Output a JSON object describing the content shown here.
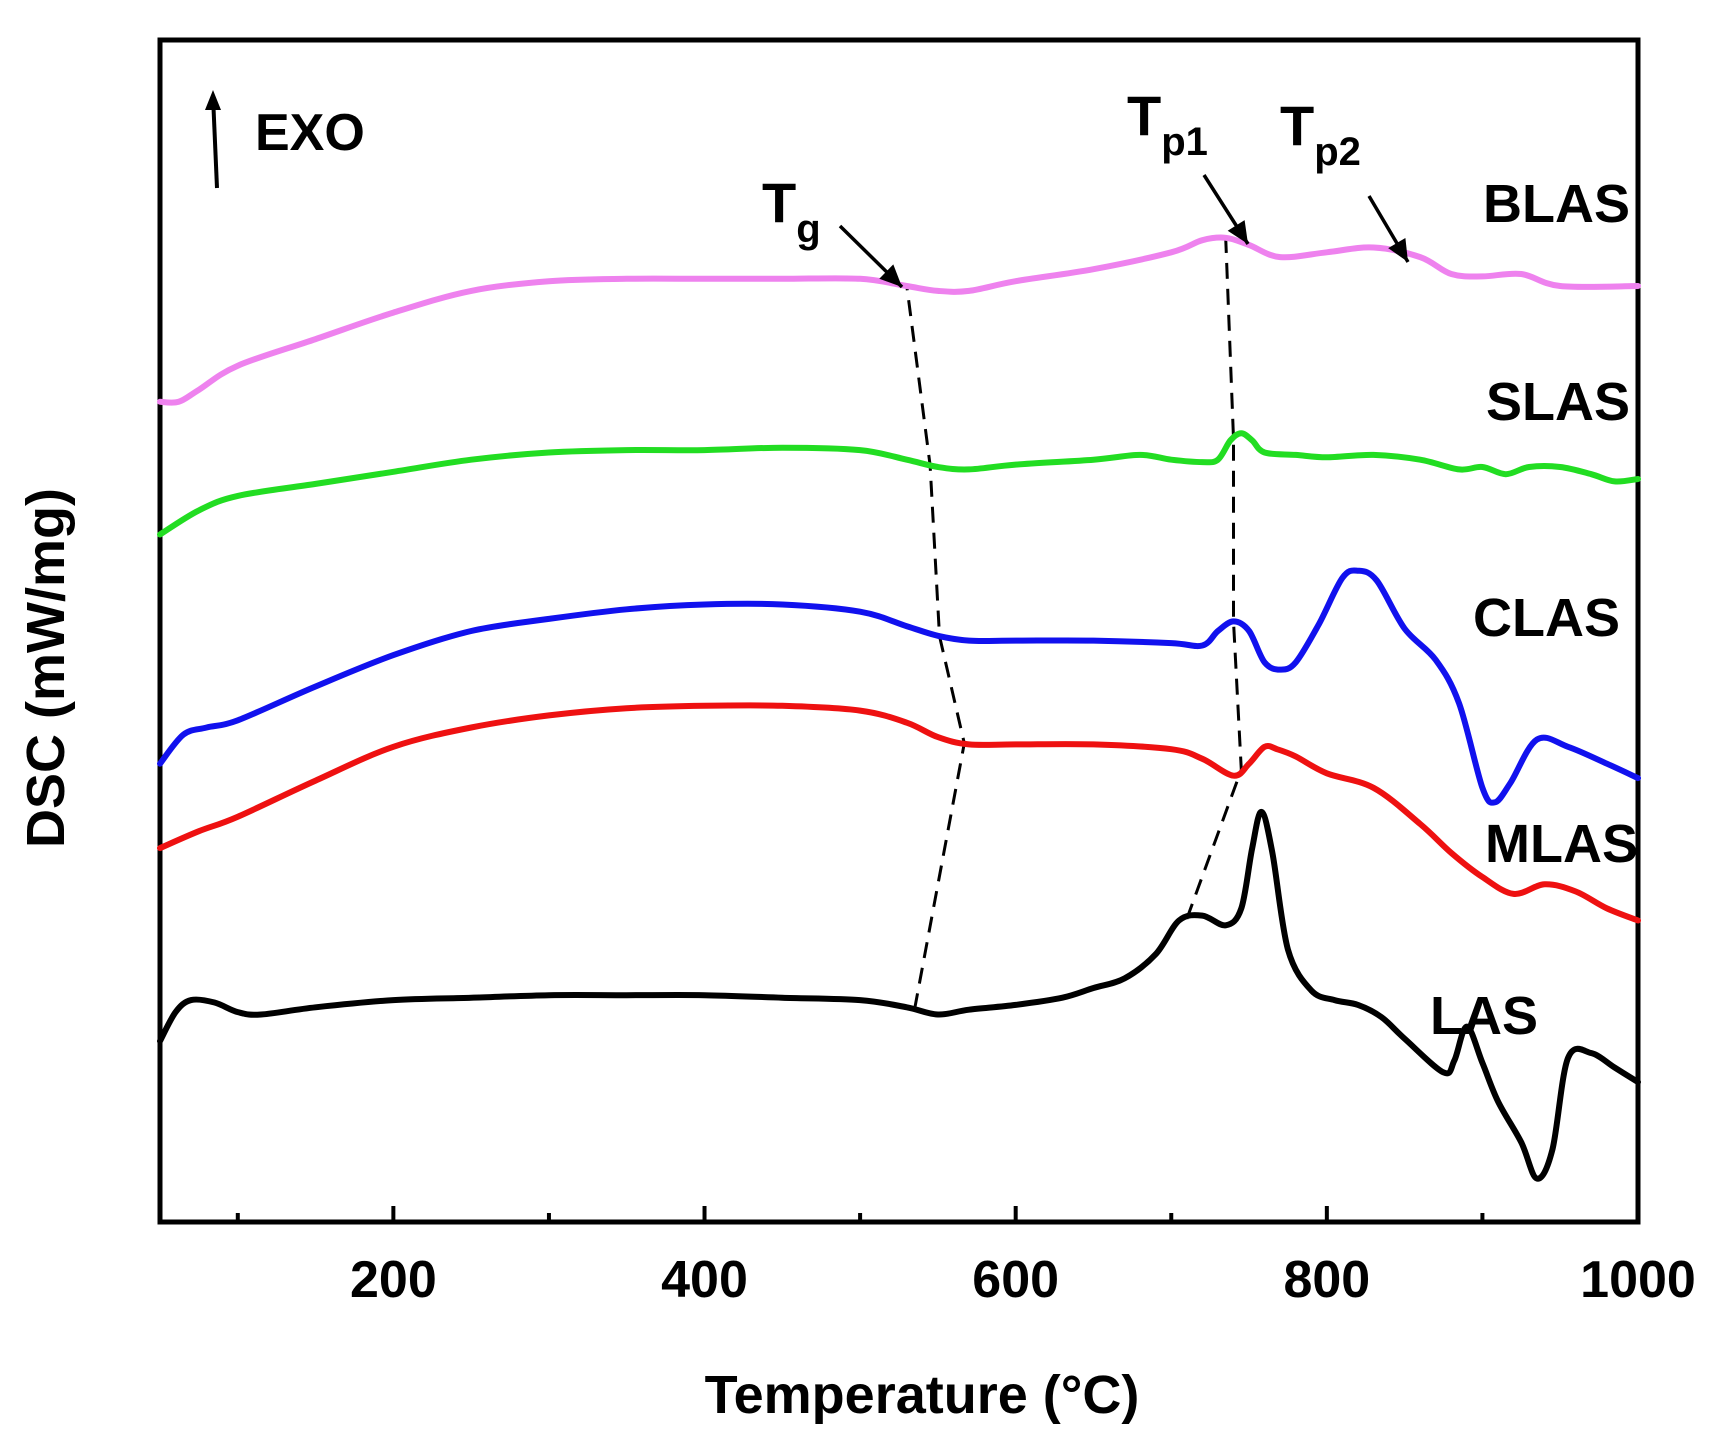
{
  "chart_data": {
    "type": "line",
    "xlabel": "Temperature (°C)",
    "ylabel": "DSC (mW/mg)",
    "xlim": [
      50,
      1000
    ],
    "x_ticks": [
      200,
      400,
      600,
      800,
      1000
    ],
    "x_tick_labels": [
      "200",
      "400",
      "600",
      "800",
      "1000"
    ],
    "y_ticks_shown": false,
    "grid": false,
    "exo_label": "EXO",
    "annotations": [
      {
        "id": "tg",
        "text": "T",
        "sub": "g",
        "x": 530
      },
      {
        "id": "tp1",
        "text": "T",
        "sub": "p1",
        "x": 740
      },
      {
        "id": "tp2",
        "text": "T",
        "sub": "p2",
        "x": 845
      }
    ],
    "guide_lines": {
      "tg": [
        [
          535,
          "LAS"
        ],
        [
          567,
          "MLAS"
        ],
        [
          551,
          "CLAS"
        ],
        [
          545,
          "SLAS"
        ],
        [
          530,
          "BLAS"
        ]
      ],
      "tp1": [
        [
          710,
          "LAS"
        ],
        [
          745,
          "MLAS"
        ],
        [
          740,
          "CLAS"
        ],
        [
          740,
          "SLAS"
        ],
        [
          735,
          "BLAS"
        ]
      ]
    },
    "series": [
      {
        "name": "BLAS",
        "color": "#ee82ee",
        "points": [
          [
            50,
            3.4
          ],
          [
            62,
            3.4
          ],
          [
            75,
            3.45
          ],
          [
            100,
            3.55
          ],
          [
            150,
            3.66
          ],
          [
            200,
            3.77
          ],
          [
            250,
            3.86
          ],
          [
            300,
            3.9
          ],
          [
            350,
            3.91
          ],
          [
            400,
            3.91
          ],
          [
            450,
            3.91
          ],
          [
            500,
            3.91
          ],
          [
            530,
            3.88
          ],
          [
            550,
            3.86
          ],
          [
            570,
            3.86
          ],
          [
            600,
            3.9
          ],
          [
            650,
            3.95
          ],
          [
            700,
            4.02
          ],
          [
            720,
            4.07
          ],
          [
            735,
            4.08
          ],
          [
            750,
            4.05
          ],
          [
            770,
            4.0
          ],
          [
            800,
            4.02
          ],
          [
            830,
            4.04
          ],
          [
            860,
            4.0
          ],
          [
            880,
            3.93
          ],
          [
            900,
            3.92
          ],
          [
            925,
            3.93
          ],
          [
            950,
            3.88
          ],
          [
            1000,
            3.88
          ]
        ]
      },
      {
        "name": "SLAS",
        "color": "#22dd22",
        "points": [
          [
            50,
            2.85
          ],
          [
            75,
            2.95
          ],
          [
            100,
            3.01
          ],
          [
            150,
            3.06
          ],
          [
            200,
            3.11
          ],
          [
            250,
            3.16
          ],
          [
            300,
            3.19
          ],
          [
            350,
            3.2
          ],
          [
            400,
            3.2
          ],
          [
            450,
            3.21
          ],
          [
            500,
            3.2
          ],
          [
            530,
            3.16
          ],
          [
            550,
            3.13
          ],
          [
            570,
            3.12
          ],
          [
            600,
            3.14
          ],
          [
            650,
            3.16
          ],
          [
            680,
            3.18
          ],
          [
            700,
            3.16
          ],
          [
            720,
            3.15
          ],
          [
            730,
            3.16
          ],
          [
            738,
            3.24
          ],
          [
            745,
            3.27
          ],
          [
            752,
            3.24
          ],
          [
            760,
            3.19
          ],
          [
            780,
            3.18
          ],
          [
            800,
            3.17
          ],
          [
            830,
            3.18
          ],
          [
            860,
            3.16
          ],
          [
            885,
            3.12
          ],
          [
            900,
            3.13
          ],
          [
            915,
            3.1
          ],
          [
            930,
            3.13
          ],
          [
            950,
            3.13
          ],
          [
            970,
            3.1
          ],
          [
            985,
            3.07
          ],
          [
            1000,
            3.08
          ]
        ]
      },
      {
        "name": "CLAS",
        "color": "#1111ee",
        "points": [
          [
            50,
            1.9
          ],
          [
            65,
            2.02
          ],
          [
            80,
            2.05
          ],
          [
            100,
            2.08
          ],
          [
            150,
            2.22
          ],
          [
            200,
            2.35
          ],
          [
            250,
            2.45
          ],
          [
            300,
            2.5
          ],
          [
            350,
            2.54
          ],
          [
            400,
            2.56
          ],
          [
            450,
            2.56
          ],
          [
            500,
            2.53
          ],
          [
            530,
            2.47
          ],
          [
            550,
            2.43
          ],
          [
            570,
            2.41
          ],
          [
            600,
            2.41
          ],
          [
            650,
            2.41
          ],
          [
            700,
            2.4
          ],
          [
            720,
            2.39
          ],
          [
            730,
            2.45
          ],
          [
            740,
            2.49
          ],
          [
            750,
            2.45
          ],
          [
            760,
            2.32
          ],
          [
            770,
            2.29
          ],
          [
            780,
            2.32
          ],
          [
            795,
            2.48
          ],
          [
            810,
            2.67
          ],
          [
            820,
            2.7
          ],
          [
            832,
            2.66
          ],
          [
            850,
            2.46
          ],
          [
            870,
            2.33
          ],
          [
            885,
            2.15
          ],
          [
            900,
            1.8
          ],
          [
            908,
            1.74
          ],
          [
            918,
            1.82
          ],
          [
            935,
            2.0
          ],
          [
            955,
            1.97
          ],
          [
            980,
            1.9
          ],
          [
            1000,
            1.84
          ]
        ]
      },
      {
        "name": "MLAS",
        "color": "#ee1111",
        "points": [
          [
            50,
            1.55
          ],
          [
            75,
            1.62
          ],
          [
            100,
            1.68
          ],
          [
            150,
            1.83
          ],
          [
            200,
            1.97
          ],
          [
            250,
            2.05
          ],
          [
            300,
            2.1
          ],
          [
            350,
            2.13
          ],
          [
            400,
            2.14
          ],
          [
            450,
            2.14
          ],
          [
            500,
            2.12
          ],
          [
            530,
            2.07
          ],
          [
            550,
            2.01
          ],
          [
            570,
            1.98
          ],
          [
            600,
            1.98
          ],
          [
            650,
            1.98
          ],
          [
            700,
            1.96
          ],
          [
            720,
            1.92
          ],
          [
            740,
            1.85
          ],
          [
            750,
            1.9
          ],
          [
            760,
            1.97
          ],
          [
            768,
            1.96
          ],
          [
            780,
            1.93
          ],
          [
            800,
            1.86
          ],
          [
            830,
            1.8
          ],
          [
            860,
            1.65
          ],
          [
            880,
            1.53
          ],
          [
            900,
            1.43
          ],
          [
            920,
            1.36
          ],
          [
            940,
            1.4
          ],
          [
            960,
            1.37
          ],
          [
            980,
            1.3
          ],
          [
            1000,
            1.25
          ]
        ]
      },
      {
        "name": "LAS",
        "color": "#000000",
        "points": [
          [
            50,
            0.75
          ],
          [
            60,
            0.87
          ],
          [
            70,
            0.92
          ],
          [
            85,
            0.91
          ],
          [
            100,
            0.87
          ],
          [
            115,
            0.86
          ],
          [
            150,
            0.89
          ],
          [
            200,
            0.92
          ],
          [
            250,
            0.93
          ],
          [
            300,
            0.94
          ],
          [
            350,
            0.94
          ],
          [
            400,
            0.94
          ],
          [
            450,
            0.93
          ],
          [
            500,
            0.92
          ],
          [
            530,
            0.89
          ],
          [
            550,
            0.86
          ],
          [
            570,
            0.88
          ],
          [
            600,
            0.9
          ],
          [
            630,
            0.93
          ],
          [
            650,
            0.97
          ],
          [
            670,
            1.01
          ],
          [
            690,
            1.11
          ],
          [
            705,
            1.25
          ],
          [
            720,
            1.27
          ],
          [
            735,
            1.23
          ],
          [
            745,
            1.3
          ],
          [
            752,
            1.55
          ],
          [
            758,
            1.7
          ],
          [
            765,
            1.53
          ],
          [
            775,
            1.13
          ],
          [
            790,
            0.96
          ],
          [
            805,
            0.92
          ],
          [
            820,
            0.9
          ],
          [
            835,
            0.85
          ],
          [
            850,
            0.76
          ],
          [
            875,
            0.62
          ],
          [
            882,
            0.67
          ],
          [
            890,
            0.81
          ],
          [
            900,
            0.66
          ],
          [
            910,
            0.5
          ],
          [
            925,
            0.33
          ],
          [
            935,
            0.18
          ],
          [
            945,
            0.3
          ],
          [
            955,
            0.68
          ],
          [
            970,
            0.7
          ],
          [
            985,
            0.64
          ],
          [
            1000,
            0.58
          ]
        ]
      }
    ]
  }
}
